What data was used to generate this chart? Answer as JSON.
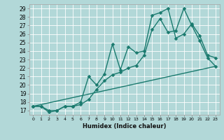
{
  "title": "",
  "xlabel": "Humidex (Indice chaleur)",
  "bg_color": "#b2d8d8",
  "grid_color": "#ffffff",
  "line_color": "#1a7a6e",
  "xlim": [
    -0.5,
    23.5
  ],
  "ylim": [
    16.5,
    29.5
  ],
  "xticks": [
    0,
    1,
    2,
    3,
    4,
    5,
    6,
    7,
    8,
    9,
    10,
    11,
    12,
    13,
    14,
    15,
    16,
    17,
    18,
    19,
    20,
    21,
    22,
    23
  ],
  "yticks": [
    17,
    18,
    19,
    20,
    21,
    22,
    23,
    24,
    25,
    26,
    27,
    28,
    29
  ],
  "series": [
    {
      "x": [
        0,
        1,
        2,
        3,
        4,
        5,
        6,
        7,
        8,
        9,
        10,
        11,
        12,
        13,
        14,
        15,
        16,
        17,
        18,
        19,
        20,
        21,
        22,
        23
      ],
      "y": [
        17.5,
        17.5,
        17.0,
        17.0,
        17.5,
        17.5,
        18.0,
        21.0,
        20.0,
        21.3,
        24.8,
        21.8,
        24.5,
        23.8,
        24.0,
        28.2,
        28.5,
        29.0,
        25.5,
        26.0,
        27.2,
        25.8,
        23.5,
        23.2
      ],
      "marker": "D",
      "markersize": 2.5,
      "linewidth": 1.0
    },
    {
      "x": [
        0,
        1,
        2,
        3,
        4,
        5,
        6,
        7,
        8,
        9,
        10,
        11,
        12,
        13,
        14,
        15,
        16,
        17,
        18,
        19,
        20,
        21,
        22,
        23
      ],
      "y": [
        17.5,
        17.5,
        16.8,
        17.0,
        17.5,
        17.5,
        17.7,
        18.3,
        19.5,
        20.5,
        21.2,
        21.5,
        22.0,
        22.3,
        23.5,
        26.5,
        27.8,
        26.2,
        26.4,
        29.0,
        27.0,
        25.2,
        23.2,
        22.2
      ],
      "marker": "D",
      "markersize": 2.5,
      "linewidth": 1.0
    },
    {
      "x": [
        0,
        23
      ],
      "y": [
        17.5,
        22.2
      ],
      "marker": null,
      "markersize": 0,
      "linewidth": 1.0
    }
  ]
}
